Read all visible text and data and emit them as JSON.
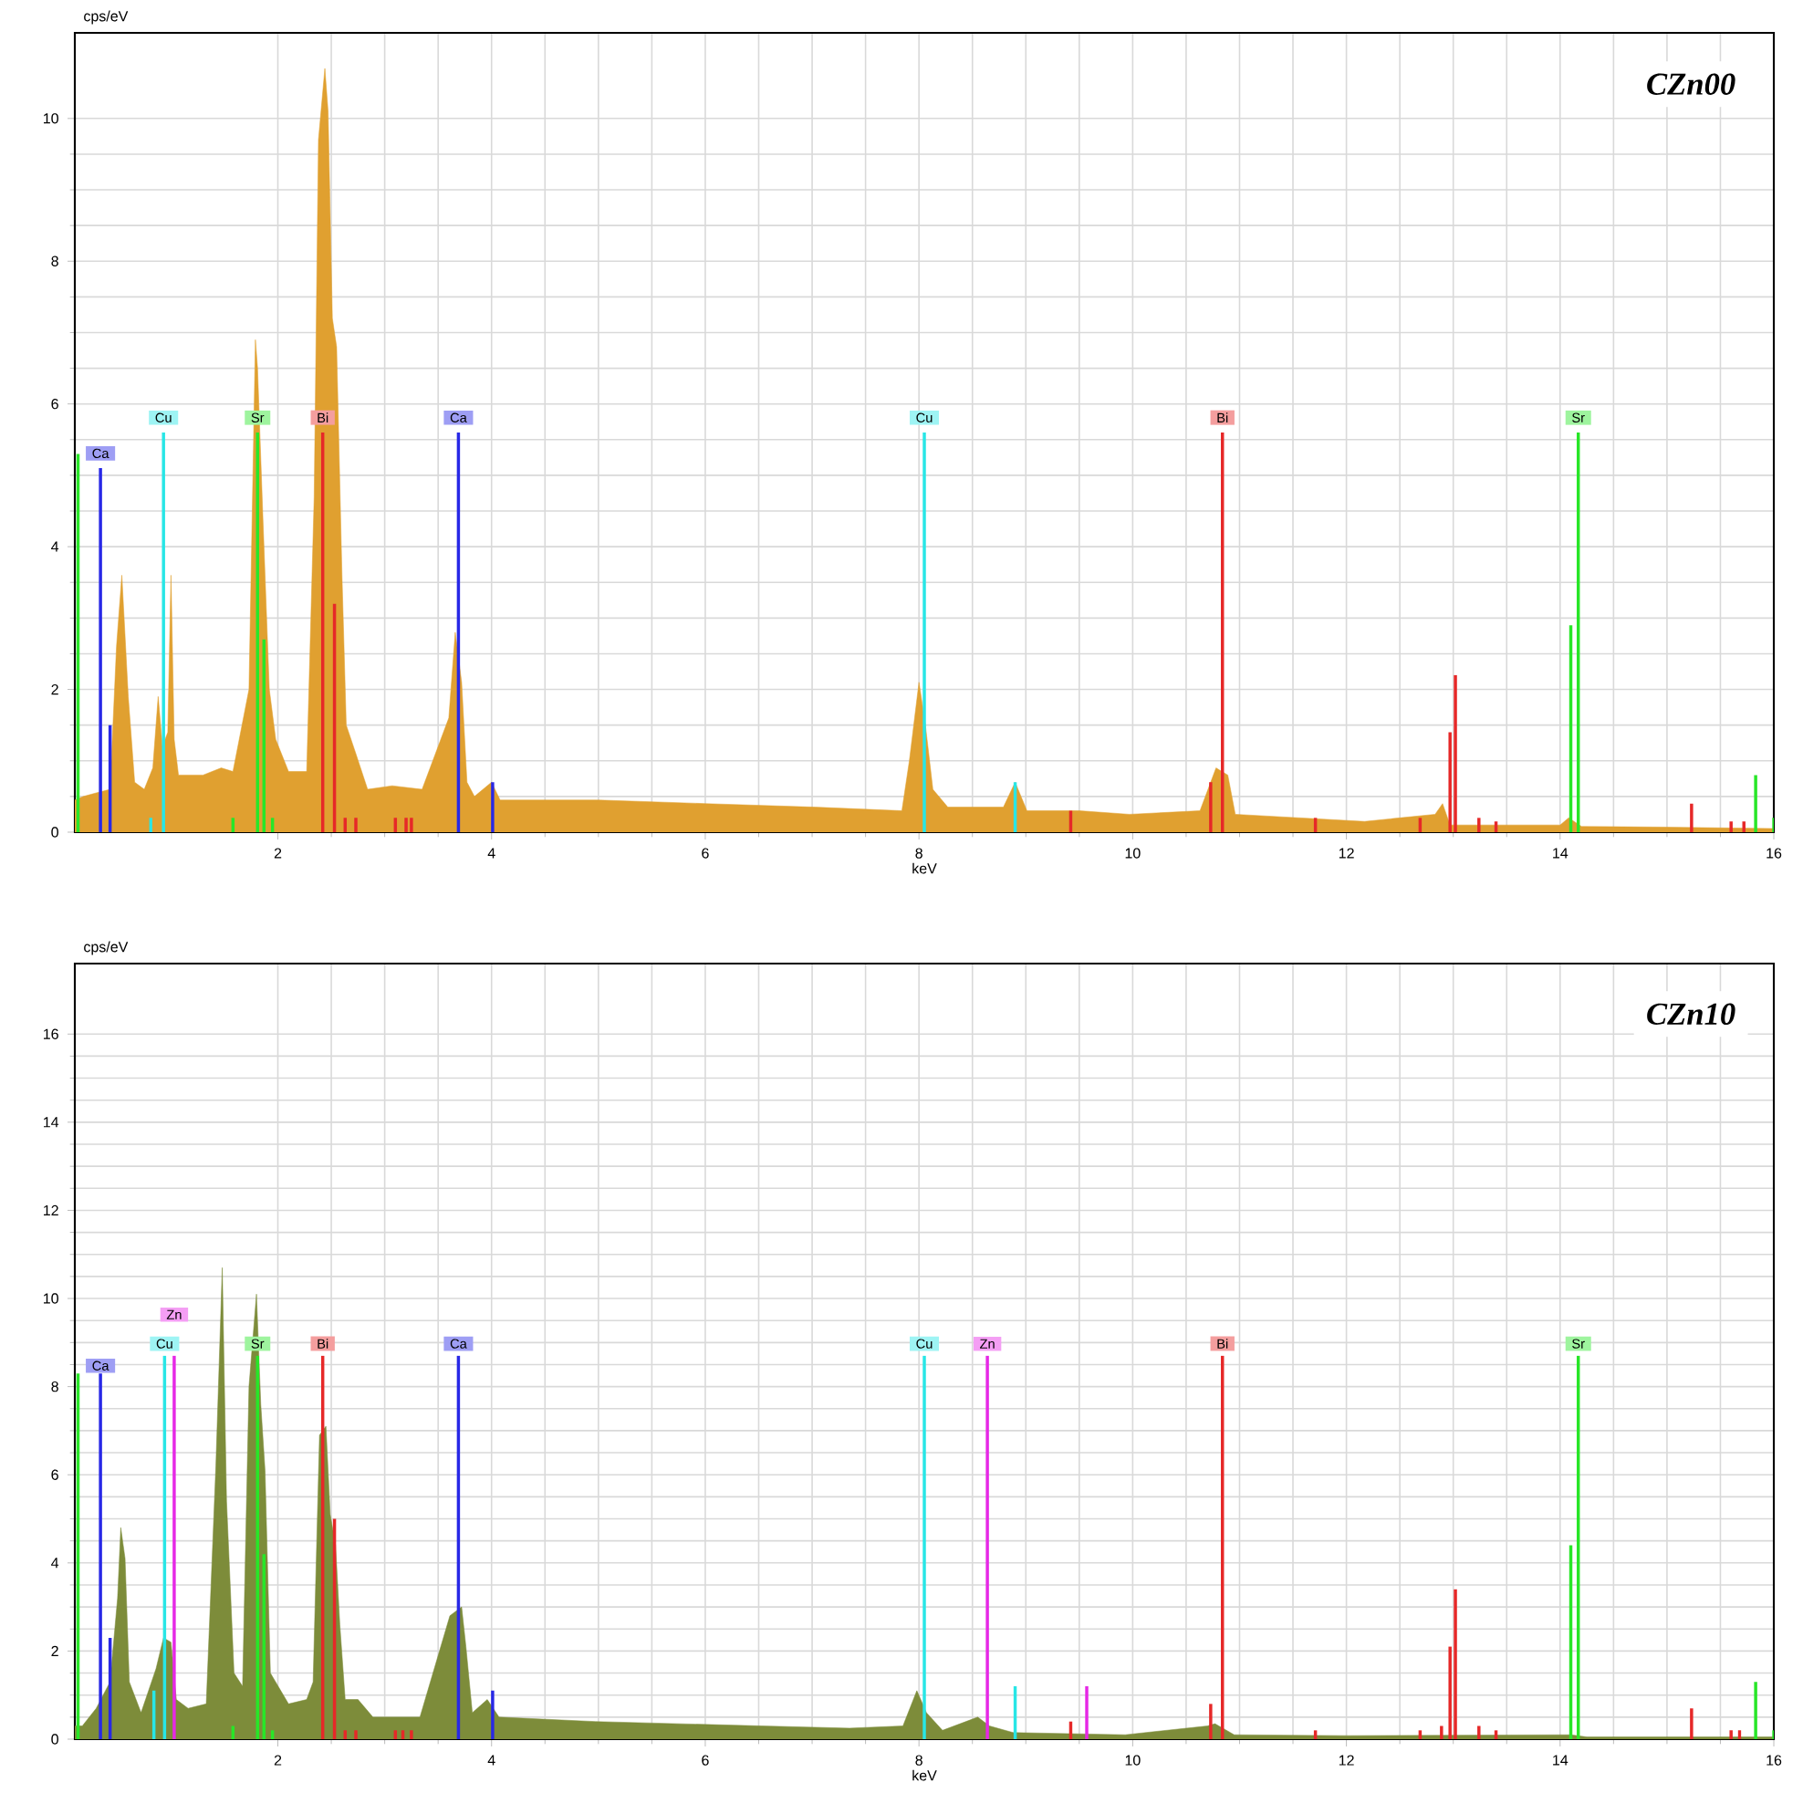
{
  "chart_data": [
    {
      "type": "area",
      "title": "CZn00",
      "xlabel": "keV",
      "ylabel": "cps/eV",
      "xlim": [
        0.1,
        16
      ],
      "ylim": [
        0,
        11.2
      ],
      "xticks": [
        2,
        4,
        6,
        8,
        10,
        12,
        14,
        16
      ],
      "yticks": [
        0,
        2,
        4,
        6,
        8,
        10
      ],
      "grid": true,
      "series": [
        {
          "color": "#e0a030",
          "x": [
            0.1,
            0.18,
            0.3,
            0.43,
            0.49,
            0.54,
            0.6,
            0.66,
            0.75,
            0.83,
            0.88,
            0.92,
            0.97,
            1.0,
            1.03,
            1.07,
            1.3,
            1.47,
            1.58,
            1.73,
            1.79,
            1.81,
            1.86,
            1.92,
            1.98,
            2.1,
            2.27,
            2.34,
            2.38,
            2.44,
            2.47,
            2.51,
            2.55,
            2.6,
            2.64,
            2.73,
            2.84,
            3.07,
            3.35,
            3.6,
            3.66,
            3.72,
            3.77,
            3.84,
            4.0,
            4.08,
            5.0,
            6.0,
            7.03,
            7.84,
            7.91,
            8.0,
            8.06,
            8.13,
            8.27,
            8.79,
            8.9,
            9.01,
            9.5,
            9.97,
            10.63,
            10.78,
            10.89,
            10.96,
            12.17,
            12.83,
            12.9,
            12.97,
            13.5,
            14.0,
            14.08,
            14.2,
            15.0,
            16.0
          ],
          "values": [
            0.45,
            0.5,
            0.55,
            0.6,
            2.6,
            3.6,
            1.9,
            0.7,
            0.6,
            0.9,
            1.9,
            1.2,
            1.4,
            3.6,
            1.3,
            0.8,
            0.8,
            0.9,
            0.85,
            2.0,
            6.9,
            6.5,
            4.4,
            2.0,
            1.3,
            0.85,
            0.85,
            4.7,
            9.7,
            10.7,
            10.1,
            7.2,
            6.8,
            3.6,
            1.5,
            1.1,
            0.6,
            0.65,
            0.6,
            1.6,
            2.8,
            2.1,
            0.7,
            0.5,
            0.7,
            0.45,
            0.45,
            0.4,
            0.35,
            0.3,
            1.0,
            2.1,
            1.5,
            0.6,
            0.35,
            0.35,
            0.7,
            0.3,
            0.3,
            0.25,
            0.3,
            0.9,
            0.8,
            0.25,
            0.15,
            0.25,
            0.4,
            0.1,
            0.1,
            0.1,
            0.2,
            0.08,
            0.07,
            0.05
          ]
        },
        {
          "type": "bar",
          "color": "#2828e6",
          "x": [
            0.34,
            0.43,
            3.69,
            4.01
          ],
          "values": [
            5.1,
            1.5,
            5.6,
            0.7
          ]
        },
        {
          "type": "bar",
          "color": "#28e6e6",
          "x": [
            0.81,
            0.93,
            8.05,
            8.9
          ],
          "values": [
            0.2,
            5.6,
            5.6,
            0.7
          ]
        },
        {
          "type": "bar",
          "color": "#28e628",
          "x": [
            0.13,
            1.58,
            1.81,
            1.87,
            1.95,
            14.1,
            14.17,
            15.83,
            16.0
          ],
          "values": [
            5.3,
            0.2,
            5.6,
            2.7,
            0.2,
            2.9,
            5.6,
            0.8,
            0.2
          ]
        },
        {
          "type": "bar",
          "color": "#e62828",
          "x": [
            2.42,
            2.53,
            2.63,
            2.73,
            3.1,
            3.2,
            3.25,
            9.42,
            10.73,
            10.84,
            11.71,
            12.69,
            12.97,
            13.02,
            13.24,
            13.4,
            15.23,
            15.6,
            15.72
          ],
          "values": [
            5.6,
            3.2,
            0.2,
            0.2,
            0.2,
            0.2,
            0.2,
            0.3,
            0.7,
            5.6,
            0.2,
            0.2,
            1.4,
            2.2,
            0.2,
            0.15,
            0.4,
            0.15,
            0.15
          ]
        }
      ],
      "annotations": [
        {
          "text": "Ca",
          "x": 0.34,
          "y": 5.2
        },
        {
          "text": "Cu",
          "x": 0.93,
          "y": 5.7
        },
        {
          "text": "Sr",
          "x": 1.81,
          "y": 5.7
        },
        {
          "text": "Bi",
          "x": 2.42,
          "y": 5.7
        },
        {
          "text": "Ca",
          "x": 3.69,
          "y": 5.7
        },
        {
          "text": "Cu",
          "x": 8.05,
          "y": 5.7
        },
        {
          "text": "Bi",
          "x": 10.84,
          "y": 5.7
        },
        {
          "text": "Sr",
          "x": 14.17,
          "y": 5.7
        }
      ]
    },
    {
      "type": "area",
      "title": "CZn10",
      "xlabel": "keV",
      "ylabel": "cps/eV",
      "xlim": [
        0.1,
        16
      ],
      "ylim": [
        0,
        17.6
      ],
      "xticks": [
        2,
        4,
        6,
        8,
        10,
        12,
        14,
        16
      ],
      "yticks": [
        0,
        2,
        4,
        6,
        8,
        10,
        12,
        14,
        16
      ],
      "grid": true,
      "series": [
        {
          "color": "#7d8c3a",
          "x": [
            0.1,
            0.17,
            0.3,
            0.43,
            0.5,
            0.53,
            0.57,
            0.61,
            0.72,
            0.86,
            0.93,
            1.0,
            1.05,
            1.16,
            1.33,
            1.42,
            1.48,
            1.52,
            1.59,
            1.67,
            1.73,
            1.8,
            1.84,
            1.88,
            1.93,
            2.1,
            2.27,
            2.33,
            2.39,
            2.45,
            2.49,
            2.54,
            2.58,
            2.63,
            2.75,
            2.89,
            3.33,
            3.61,
            3.72,
            3.76,
            3.82,
            3.96,
            4.07,
            4.97,
            6.53,
            7.35,
            7.85,
            7.98,
            8.07,
            8.22,
            8.55,
            8.66,
            8.88,
            9.93,
            10.7,
            10.77,
            10.95,
            12.0,
            14.1,
            14.25,
            16.0
          ],
          "values": [
            0.3,
            0.3,
            0.7,
            1.3,
            3.2,
            4.8,
            4.1,
            1.3,
            0.6,
            1.6,
            2.3,
            2.2,
            0.9,
            0.7,
            0.8,
            6.2,
            10.7,
            5.4,
            1.5,
            1.2,
            8.0,
            10.1,
            7.6,
            6.1,
            1.5,
            0.8,
            0.9,
            1.3,
            6.9,
            7.1,
            5.1,
            4.4,
            2.6,
            0.9,
            0.9,
            0.5,
            0.5,
            2.8,
            3.0,
            2.1,
            0.6,
            0.9,
            0.5,
            0.4,
            0.3,
            0.25,
            0.3,
            1.1,
            0.6,
            0.2,
            0.5,
            0.3,
            0.15,
            0.1,
            0.3,
            0.35,
            0.1,
            0.08,
            0.1,
            0.05,
            0.05
          ]
        },
        {
          "type": "bar",
          "color": "#2828e6",
          "x": [
            0.34,
            0.43,
            3.69,
            4.01
          ],
          "values": [
            8.3,
            2.3,
            8.7,
            1.1
          ]
        },
        {
          "type": "bar",
          "color": "#28e6e6",
          "x": [
            0.84,
            0.94,
            8.05,
            8.9
          ],
          "values": [
            1.1,
            8.7,
            8.7,
            1.2
          ]
        },
        {
          "type": "bar",
          "color": "#e628e6",
          "x": [
            1.03,
            8.64,
            9.57
          ],
          "values": [
            8.7,
            8.7,
            1.2
          ]
        },
        {
          "type": "bar",
          "color": "#28e628",
          "x": [
            0.13,
            1.58,
            1.81,
            1.87,
            1.95,
            14.1,
            14.17,
            15.83,
            16.0
          ],
          "values": [
            8.3,
            0.3,
            8.7,
            4.2,
            0.2,
            4.4,
            8.7,
            1.3,
            0.2
          ]
        },
        {
          "type": "bar",
          "color": "#e62828",
          "x": [
            2.42,
            2.53,
            2.63,
            2.73,
            3.1,
            3.17,
            3.25,
            9.42,
            10.73,
            10.84,
            11.71,
            12.69,
            12.89,
            12.97,
            13.02,
            13.24,
            13.4,
            15.23,
            15.6,
            15.68
          ],
          "values": [
            8.7,
            5.0,
            0.2,
            0.2,
            0.2,
            0.2,
            0.2,
            0.4,
            0.8,
            8.7,
            0.2,
            0.2,
            0.3,
            2.1,
            3.4,
            0.3,
            0.2,
            0.7,
            0.2,
            0.2
          ]
        }
      ],
      "annotations": [
        {
          "text": "Ca",
          "x": 0.34,
          "y": 8.3
        },
        {
          "text": "Cu",
          "x": 0.94,
          "y": 8.8
        },
        {
          "text": "Zn",
          "x": 1.03,
          "y": 8.8
        },
        {
          "text": "Sr",
          "x": 1.81,
          "y": 8.8
        },
        {
          "text": "Bi",
          "x": 2.42,
          "y": 8.8
        },
        {
          "text": "Ca",
          "x": 3.69,
          "y": 8.8
        },
        {
          "text": "Cu",
          "x": 8.05,
          "y": 8.8
        },
        {
          "text": "Zn",
          "x": 8.64,
          "y": 8.8
        },
        {
          "text": "Bi",
          "x": 10.84,
          "y": 8.8
        },
        {
          "text": "Sr",
          "x": 14.17,
          "y": 8.8
        }
      ]
    }
  ]
}
